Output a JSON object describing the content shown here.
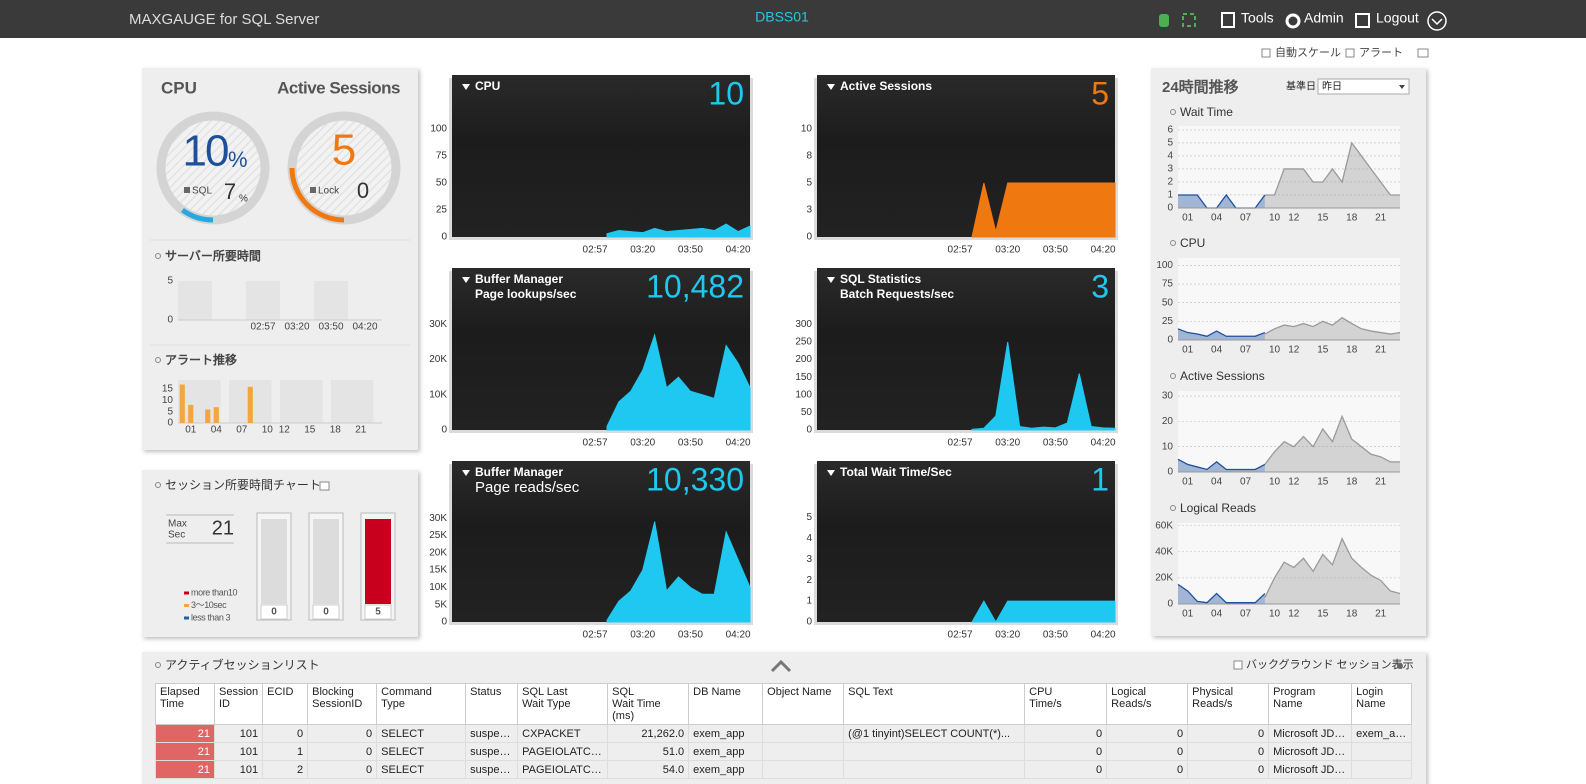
{
  "header": {
    "app_title": "MAXGAUGE for SQL Server",
    "server": "DBSS01",
    "menu": [
      "Tools",
      "Admin",
      "Logout"
    ]
  },
  "toolbar": {
    "auto_scale": "自動スケール",
    "alert": "アラート"
  },
  "summary": {
    "gauges": [
      {
        "title": "CPU",
        "value": 10,
        "unit": "%",
        "sub_label": "SQL",
        "sub_value": 7,
        "sub_unit": "%"
      },
      {
        "title": "Active Sessions",
        "value": 5,
        "sub_label": "Lock",
        "sub_value": 0
      }
    ]
  },
  "session_chart": {
    "title": "セッション所要時間チャート",
    "max_label": [
      "Max",
      "Sec"
    ],
    "max_value": 21,
    "legend": [
      {
        "label": "more than10",
        "color": "#c8001e"
      },
      {
        "label": "3〜10sec",
        "color": "#f4a53c"
      },
      {
        "label": "less than 3",
        "color": "#1f5fa8"
      }
    ],
    "values": [
      0,
      0,
      5
    ],
    "colors": [
      "#1f5fa8",
      "#f4a53c",
      "#c8001e"
    ]
  },
  "trend_panel": {
    "title": "24時間推移",
    "base_date_label": "基準日",
    "base_date": "昨日"
  },
  "chart_data": [
    {
      "type": "bar",
      "title": "サーバー所要時間",
      "categories": [
        null,
        null,
        "02:57",
        "03:20",
        "03:50",
        "04:20"
      ],
      "ylim": [
        0,
        5
      ],
      "yticks": [
        0,
        5
      ]
    },
    {
      "type": "bar",
      "title": "アラート推移",
      "categories": [
        null,
        "01",
        null,
        null,
        "04",
        null,
        null,
        "07",
        null,
        null,
        "10",
        null,
        "12",
        null,
        null,
        "15",
        null,
        null,
        "18",
        null,
        null,
        "21",
        null,
        null
      ],
      "values": [
        17,
        8,
        0,
        6,
        7,
        0,
        0,
        0,
        16,
        0,
        0,
        0,
        0,
        0,
        0,
        0,
        0,
        0,
        0,
        0,
        0,
        0,
        0,
        0
      ],
      "color": "#f4a53c",
      "ylim": [
        0,
        19
      ],
      "yticks": [
        0,
        5,
        10,
        15
      ]
    },
    {
      "type": "area",
      "title": "CPU",
      "current": "10",
      "color": "#1ec8f0",
      "categories": [
        null,
        null,
        null,
        null,
        null,
        null,
        null,
        null,
        null,
        null,
        null,
        null,
        "02:57",
        null,
        null,
        null,
        "03:20",
        null,
        null,
        null,
        "03:50",
        null,
        null,
        null,
        "04:20",
        null
      ],
      "values": [
        null,
        null,
        null,
        null,
        null,
        null,
        null,
        null,
        null,
        null,
        null,
        null,
        null,
        3,
        6,
        5,
        4,
        8,
        5,
        6,
        7,
        8,
        6,
        12,
        5,
        10
      ],
      "ylim": [
        0,
        150
      ],
      "yticks": [
        0,
        25,
        50,
        75,
        100
      ]
    },
    {
      "type": "area",
      "title": "Active Sessions",
      "current": "5",
      "color": "#f07810",
      "categories": [
        null,
        null,
        null,
        null,
        null,
        null,
        null,
        null,
        null,
        null,
        null,
        null,
        "02:57",
        null,
        null,
        null,
        "03:20",
        null,
        null,
        null,
        "03:50",
        null,
        null,
        null,
        "04:20",
        null
      ],
      "values": [
        null,
        null,
        null,
        null,
        null,
        null,
        null,
        null,
        null,
        null,
        null,
        null,
        null,
        0,
        5,
        0.5,
        5,
        5,
        5,
        5,
        5,
        5,
        5,
        5,
        5,
        5
      ],
      "ylim": [
        0,
        15
      ],
      "yticks": [
        0,
        {
          "value": 2.5,
          "label": "3"
        },
        5,
        {
          "value": 7.5,
          "label": "8"
        },
        10
      ]
    },
    {
      "type": "area",
      "title": "Buffer Manager",
      "subtitle": "Page lookups/sec",
      "current": "10,482",
      "color": "#1ec8f0",
      "categories": [
        null,
        null,
        null,
        null,
        null,
        null,
        null,
        null,
        null,
        null,
        null,
        null,
        "02:57",
        null,
        null,
        null,
        "03:20",
        null,
        null,
        null,
        "03:50",
        null,
        null,
        null,
        "04:20",
        null
      ],
      "values": [
        null,
        null,
        null,
        null,
        null,
        null,
        null,
        null,
        null,
        null,
        null,
        null,
        null,
        1000,
        8000,
        11000,
        17000,
        27000,
        12000,
        15000,
        11000,
        10000,
        9000,
        24000,
        19000,
        12000
      ],
      "ylim": [
        0,
        46000
      ],
      "yticks": [
        0,
        {
          "value": 10000,
          "label": "10K"
        },
        {
          "value": 20000,
          "label": "20K"
        },
        {
          "value": 30000,
          "label": "30K"
        }
      ]
    },
    {
      "type": "area",
      "title": "SQL Statistics",
      "subtitle": "Batch Requests/sec",
      "current": "3",
      "color": "#1ec8f0",
      "categories": [
        null,
        null,
        null,
        null,
        null,
        null,
        null,
        null,
        null,
        null,
        null,
        null,
        "02:57",
        null,
        null,
        null,
        "03:20",
        null,
        null,
        null,
        "03:50",
        null,
        null,
        null,
        "04:20",
        null
      ],
      "values": [
        null,
        null,
        null,
        null,
        null,
        null,
        null,
        null,
        null,
        null,
        null,
        null,
        null,
        2,
        5,
        40,
        250,
        10,
        5,
        8,
        6,
        20,
        160,
        10,
        6,
        5
      ],
      "ylim": [
        0,
        460
      ],
      "yticks": [
        0,
        50,
        100,
        150,
        200,
        250,
        300
      ]
    },
    {
      "type": "area",
      "title": "Buffer Manager",
      "subtitle": "Page reads/sec",
      "current": "10,330",
      "color": "#1ec8f0",
      "categories": [
        null,
        null,
        null,
        null,
        null,
        null,
        null,
        null,
        null,
        null,
        null,
        null,
        "02:57",
        null,
        null,
        null,
        "03:20",
        null,
        null,
        null,
        "03:50",
        null,
        null,
        null,
        "04:20",
        null
      ],
      "values": [
        null,
        null,
        null,
        null,
        null,
        null,
        null,
        null,
        null,
        null,
        null,
        null,
        null,
        500,
        6000,
        9000,
        15000,
        29000,
        9000,
        13000,
        10000,
        8000,
        8000,
        26000,
        18000,
        10000
      ],
      "ylim": [
        0,
        46500
      ],
      "yticks": [
        0,
        {
          "value": 5000,
          "label": "5K"
        },
        {
          "value": 10000,
          "label": "10K"
        },
        {
          "value": 15000,
          "label": "15K"
        },
        {
          "value": 20000,
          "label": "20K"
        },
        {
          "value": 25000,
          "label": "25K"
        },
        {
          "value": 30000,
          "label": "30K"
        }
      ]
    },
    {
      "type": "area",
      "title": "Total Wait Time/Sec",
      "current": "1",
      "color": "#1ec8f0",
      "categories": [
        null,
        null,
        null,
        null,
        null,
        null,
        null,
        null,
        null,
        null,
        null,
        null,
        "02:57",
        null,
        null,
        null,
        "03:20",
        null,
        null,
        null,
        "03:50",
        null,
        null,
        null,
        "04:20",
        null
      ],
      "values": [
        null,
        null,
        null,
        null,
        null,
        null,
        null,
        null,
        null,
        null,
        null,
        null,
        null,
        0,
        1,
        0,
        1,
        1,
        1,
        1,
        1,
        1,
        1,
        1,
        1,
        1
      ],
      "ylim": [
        0,
        7.7
      ],
      "yticks": [
        0,
        1,
        2,
        3,
        4,
        5
      ]
    },
    {
      "type": "area",
      "title": "Wait Time",
      "grid": true,
      "categories": [
        null,
        "01",
        null,
        null,
        "04",
        null,
        null,
        "07",
        null,
        null,
        "10",
        null,
        "12",
        null,
        null,
        "15",
        null,
        null,
        "18",
        null,
        null,
        "21",
        null,
        null
      ],
      "series": [
        {
          "color": "#1f4fa0",
          "values": [
            1,
            1,
            1,
            0,
            0,
            1,
            0,
            0,
            0,
            1,
            null,
            null,
            null,
            null,
            null,
            null,
            null,
            null,
            null,
            null,
            null,
            null,
            null,
            null
          ]
        },
        {
          "color": "#9a9a9a",
          "values": [
            null,
            null,
            null,
            null,
            null,
            null,
            null,
            null,
            null,
            1,
            1,
            3,
            3,
            3,
            2,
            2,
            3,
            2,
            5,
            4,
            3,
            2,
            1,
            1
          ]
        }
      ],
      "ylim": [
        0,
        6.3
      ],
      "yticks": [
        0,
        1,
        2,
        3,
        4,
        5,
        6
      ]
    },
    {
      "type": "area",
      "title": "CPU",
      "grid": true,
      "categories": [
        null,
        "01",
        null,
        null,
        "04",
        null,
        null,
        "07",
        null,
        null,
        "10",
        null,
        "12",
        null,
        null,
        "15",
        null,
        null,
        "18",
        null,
        null,
        "21",
        null,
        null
      ],
      "series": [
        {
          "color": "#1f4fa0",
          "values": [
            15,
            10,
            8,
            5,
            12,
            5,
            5,
            5,
            5,
            10,
            null,
            null,
            null,
            null,
            null,
            null,
            null,
            null,
            null,
            null,
            null,
            null,
            null,
            null
          ]
        },
        {
          "color": "#9a9a9a",
          "values": [
            null,
            null,
            null,
            null,
            null,
            null,
            null,
            null,
            null,
            8,
            15,
            20,
            18,
            22,
            18,
            25,
            20,
            30,
            22,
            15,
            12,
            10,
            8,
            10
          ]
        }
      ],
      "ylim": [
        0,
        110
      ],
      "yticks": [
        0,
        25,
        50,
        75,
        100
      ]
    },
    {
      "type": "area",
      "title": "Active Sessions",
      "grid": true,
      "categories": [
        null,
        "01",
        null,
        null,
        "04",
        null,
        null,
        "07",
        null,
        null,
        "10",
        null,
        "12",
        null,
        null,
        "15",
        null,
        null,
        "18",
        null,
        null,
        "21",
        null,
        null
      ],
      "series": [
        {
          "color": "#1f4fa0",
          "values": [
            5,
            3,
            2,
            1,
            4,
            1,
            1,
            1,
            1,
            3,
            null,
            null,
            null,
            null,
            null,
            null,
            null,
            null,
            null,
            null,
            null,
            null,
            null,
            null
          ]
        },
        {
          "color": "#9a9a9a",
          "values": [
            null,
            null,
            null,
            null,
            null,
            null,
            null,
            null,
            null,
            3,
            8,
            12,
            10,
            14,
            10,
            17,
            12,
            22,
            13,
            10,
            7,
            6,
            4,
            4
          ]
        }
      ],
      "ylim": [
        0,
        32
      ],
      "yticks": [
        0,
        10,
        20,
        30
      ]
    },
    {
      "type": "area",
      "title": "Logical Reads",
      "grid": true,
      "categories": [
        null,
        "01",
        null,
        null,
        "04",
        null,
        null,
        "07",
        null,
        null,
        "10",
        null,
        "12",
        null,
        null,
        "15",
        null,
        null,
        "18",
        null,
        null,
        "21",
        null,
        null
      ],
      "series": [
        {
          "color": "#1f4fa0",
          "values": [
            15000,
            10000,
            2000,
            1000,
            8000,
            1000,
            1000,
            1000,
            1000,
            8000,
            null,
            null,
            null,
            null,
            null,
            null,
            null,
            null,
            null,
            null,
            null,
            null,
            null,
            null
          ]
        },
        {
          "color": "#9a9a9a",
          "values": [
            null,
            null,
            null,
            null,
            null,
            null,
            null,
            null,
            null,
            5000,
            20000,
            32000,
            28000,
            35000,
            25000,
            38000,
            30000,
            50000,
            35000,
            28000,
            22000,
            18000,
            10000,
            8000
          ]
        }
      ],
      "ylim": [
        0,
        62000
      ],
      "yticks": [
        0,
        {
          "value": 20000,
          "label": "20K"
        },
        {
          "value": 40000,
          "label": "40K"
        },
        {
          "value": 60000,
          "label": "60K"
        }
      ]
    }
  ],
  "session_list": {
    "title": "アクティブセッションリスト",
    "background_option": "バックグラウンド セッション表示",
    "columns": [
      "Elapsed\nTime",
      "Session\nID",
      "ECID",
      "Blocking\nSessionID",
      "Command\nType",
      "Status",
      "SQL Last\nWait Type",
      "SQL\nWait Time (ms)",
      "DB Name",
      "Object Name",
      "SQL Text",
      "CPU\nTime/s",
      "Logical\nReads/s",
      "Physical\nReads/s",
      "Program\nName",
      "Login\nName"
    ],
    "rows": [
      [
        21,
        101,
        0,
        0,
        "SELECT",
        "suspe…",
        "CXPACKET",
        "21,262.0",
        "exem_app",
        null,
        "(@1 tinyint)SELECT COUNT(*)...",
        0,
        0,
        0,
        "Microsoft JD…",
        "exem_a…"
      ],
      [
        21,
        101,
        1,
        0,
        "SELECT",
        "suspe…",
        "PAGEIOLATC…",
        "51.0",
        "exem_app",
        null,
        null,
        0,
        0,
        0,
        "Microsoft JD…",
        null
      ],
      [
        21,
        101,
        2,
        0,
        "SELECT",
        "suspe…",
        "PAGEIOLATC…",
        "54.0",
        "exem_app",
        null,
        null,
        0,
        0,
        0,
        "Microsoft JD…",
        null
      ]
    ]
  }
}
